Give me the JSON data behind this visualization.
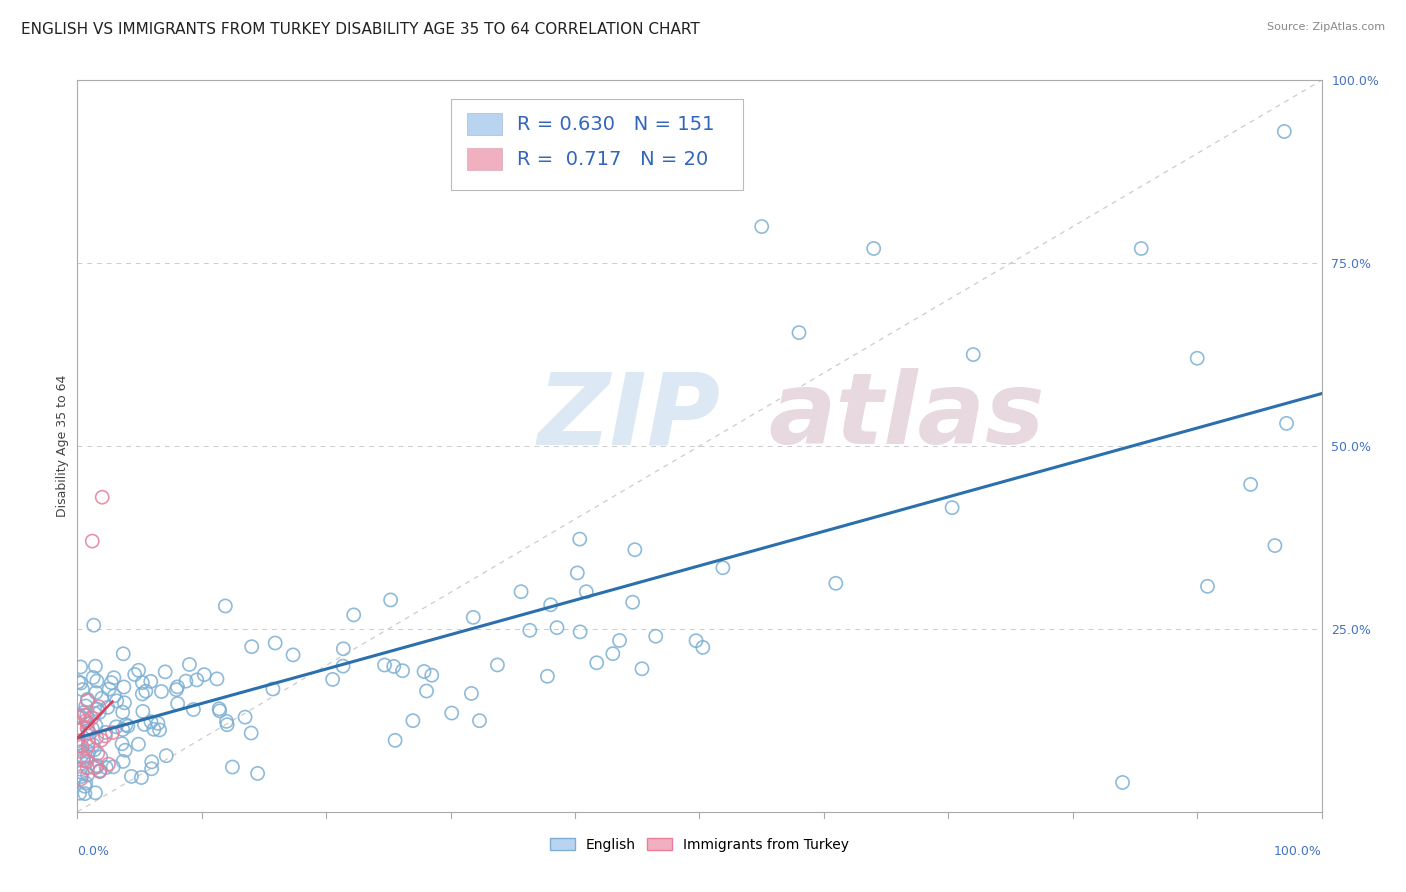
{
  "title": "ENGLISH VS IMMIGRANTS FROM TURKEY DISABILITY AGE 35 TO 64 CORRELATION CHART",
  "source": "Source: ZipAtlas.com",
  "ylabel": "Disability Age 35 to 64",
  "legend_english": {
    "R": "0.630",
    "N": "151",
    "label": "English"
  },
  "legend_turkey": {
    "R": "0.717",
    "N": "20",
    "label": "Immigrants from Turkey"
  },
  "english_face_color": "none",
  "english_edge_color": "#7bafd4",
  "turkey_face_color": "none",
  "turkey_edge_color": "#e87e9a",
  "english_line_color": "#2c6fad",
  "turkey_line_color": "#d44060",
  "diagonal_color": "#cccccc",
  "grid_color": "#cccccc",
  "background_color": "#ffffff",
  "title_fontsize": 11,
  "axis_label_fontsize": 9,
  "tick_label_fontsize": 9,
  "legend_fontsize": 14,
  "watermark_color": "#dde8f5",
  "watermark2_color": "#e8d8e0"
}
